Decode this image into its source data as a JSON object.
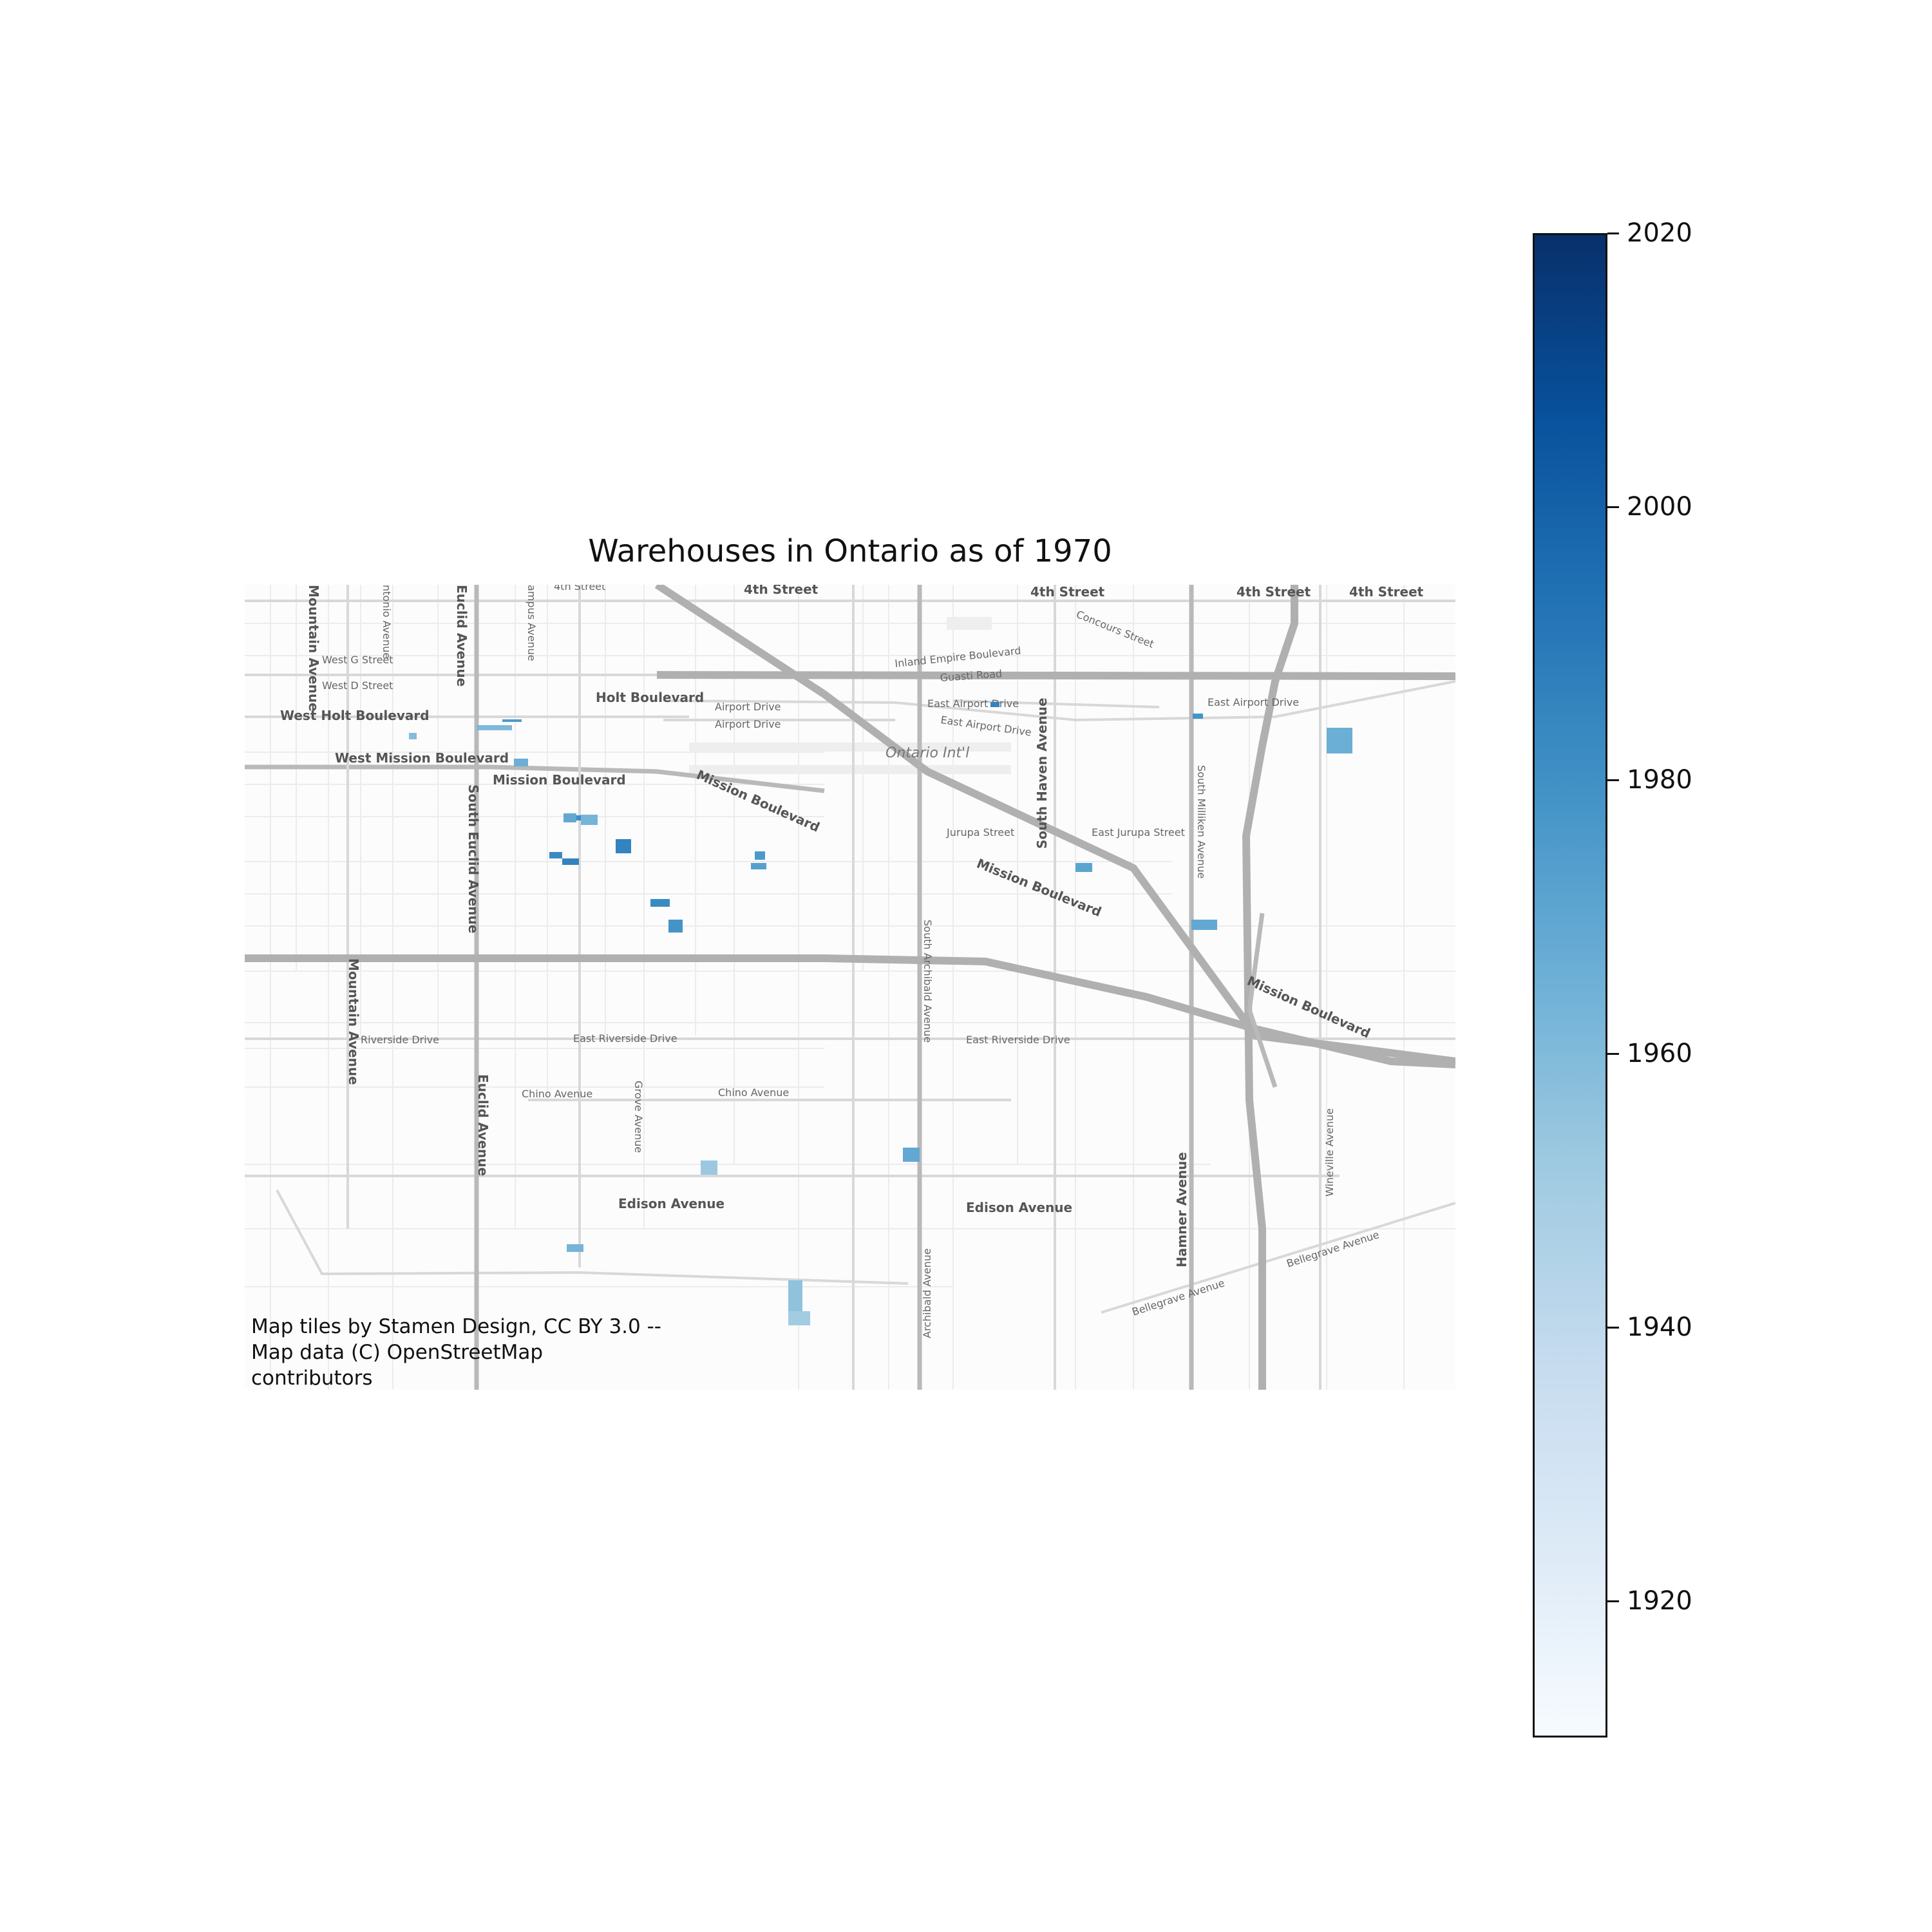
{
  "title": "Warehouses in Ontario as of 1970",
  "attribution": "Map tiles by Stamen Design, CC BY 3.0 -- Map data (C) OpenStreetMap contributors",
  "basemap_labels": {
    "fourth_st": "4th Street",
    "mountain_ave": "Mountain Avenue",
    "antonio_ave": "ntonio Avenue",
    "euclid_ave": "Euclid Avenue",
    "campus_ave": "ampus Avenue",
    "west_g_st": "West G Street",
    "west_d_st": "West D Street",
    "west_holt": "West Holt Boulevard",
    "holt": "Holt Boulevard",
    "west_mission": "West Mission Boulevard",
    "mission": "Mission Boulevard",
    "south_euclid": "South Euclid Avenue",
    "airport_dr": "Airport Drive",
    "inland_empire": "Inland Empire Boulevard",
    "guasti": "Guasti Road",
    "concours": "Concours Street",
    "east_airport": "East Airport Drive",
    "ontario_intl": "Ontario Int'l",
    "south_haven": "South Haven Avenue",
    "jurupa": "Jurupa Street",
    "east_jurupa": "East Jurupa Street",
    "south_milliken": "South Milliken Avenue",
    "south_archibald": "South Archibald Avenue",
    "riverside": "Riverside Drive",
    "east_riverside": "East Riverside Drive",
    "chino": "Chino Avenue",
    "grove": "Grove Avenue",
    "edison": "Edison Avenue",
    "archibald": "Archibald Avenue",
    "hamner": "Hamner Avenue",
    "wineville": "Wineville Avenue",
    "bellegrave": "Bellegrave Avenue"
  },
  "chart_data": {
    "type": "choropleth",
    "colormap": "Blues",
    "colorbar": {
      "min": 1910,
      "max": 2020,
      "ticks": [
        "1920",
        "1940",
        "1960",
        "1980",
        "2000",
        "2020"
      ]
    },
    "warehouses": [
      {
        "year": 1958
      },
      {
        "year": 1960
      },
      {
        "year": 1975
      },
      {
        "year": 1965
      },
      {
        "year": 1968
      },
      {
        "year": 1980
      },
      {
        "year": 1962
      },
      {
        "year": 1985
      },
      {
        "year": 1982
      },
      {
        "year": 1985
      },
      {
        "year": 1975
      },
      {
        "year": 1972
      },
      {
        "year": 1970
      },
      {
        "year": 1982
      },
      {
        "year": 1985
      },
      {
        "year": 1978
      },
      {
        "year": 1965
      },
      {
        "year": 1978
      },
      {
        "year": 1968
      },
      {
        "year": 1952
      },
      {
        "year": 1968
      },
      {
        "year": 1962
      },
      {
        "year": 1955
      },
      {
        "year": 1950
      }
    ]
  }
}
